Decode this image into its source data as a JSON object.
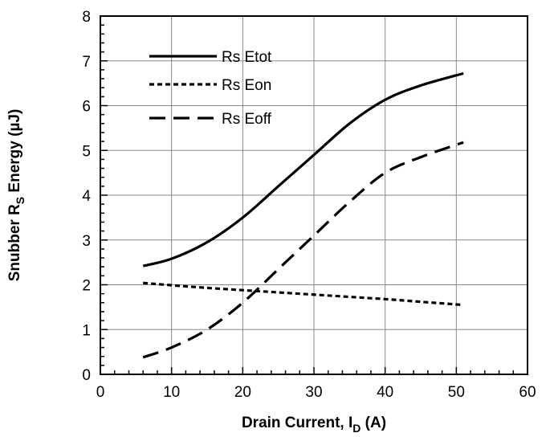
{
  "chart_data": {
    "type": "line",
    "title": "",
    "xlabel": "Drain Current, I",
    "xlabel_sub": "D",
    "xlabel_suffix": " (A)",
    "ylabel": "Snubber R",
    "ylabel_sub": "S",
    "ylabel_suffix": " Energy (µJ)",
    "xlim": [
      0,
      60
    ],
    "ylim": [
      0,
      8
    ],
    "xticks": [
      "0",
      "10",
      "20",
      "30",
      "40",
      "50",
      "60"
    ],
    "yticks": [
      "0",
      "1",
      "2",
      "3",
      "4",
      "5",
      "6",
      "7",
      "8"
    ],
    "grid": true,
    "legend_position": "top-left",
    "series": [
      {
        "name": "Rs Etot",
        "line_style": "solid",
        "x": [
          6,
          10,
          15,
          20,
          25,
          30,
          35,
          40,
          45,
          51
        ],
        "y": [
          2.42,
          2.58,
          2.95,
          3.5,
          4.2,
          4.9,
          5.6,
          6.13,
          6.45,
          6.72
        ]
      },
      {
        "name": "Rs Eon",
        "line_style": "short-dash",
        "x": [
          6,
          10,
          15,
          20,
          25,
          30,
          35,
          40,
          45,
          51
        ],
        "y": [
          2.04,
          1.99,
          1.93,
          1.88,
          1.83,
          1.78,
          1.73,
          1.68,
          1.62,
          1.55
        ]
      },
      {
        "name": "Rs Eoff",
        "line_style": "long-dash",
        "x": [
          6,
          10,
          15,
          20,
          25,
          30,
          35,
          40,
          45,
          51
        ],
        "y": [
          0.38,
          0.6,
          1.0,
          1.6,
          2.35,
          3.1,
          3.85,
          4.5,
          4.85,
          5.18
        ]
      }
    ]
  }
}
